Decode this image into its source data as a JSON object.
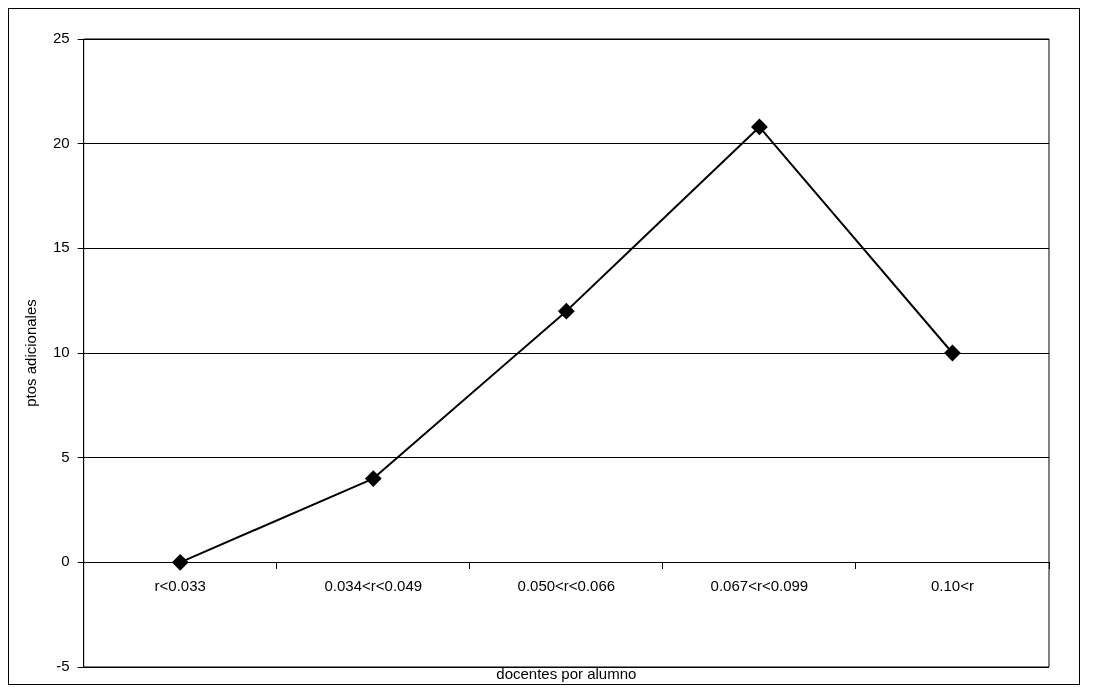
{
  "chart_data": {
    "type": "line",
    "xlabel": "docentes por alumno",
    "ylabel": "ptos adicionales",
    "categories": [
      "r<0.033",
      "0.034<r<0.049",
      "0.050<r<0.066",
      "0.067<r<0.099",
      "0.10<r"
    ],
    "series": [
      {
        "color": "#000000",
        "values": [
          0,
          4,
          12,
          20.8,
          10
        ]
      }
    ],
    "ylim": [
      -5,
      25
    ],
    "yticks": [
      -5,
      0,
      5,
      10,
      15,
      20,
      25
    ],
    "grid": "y",
    "legend": false,
    "marker": "diamond",
    "line_style": "solid"
  }
}
